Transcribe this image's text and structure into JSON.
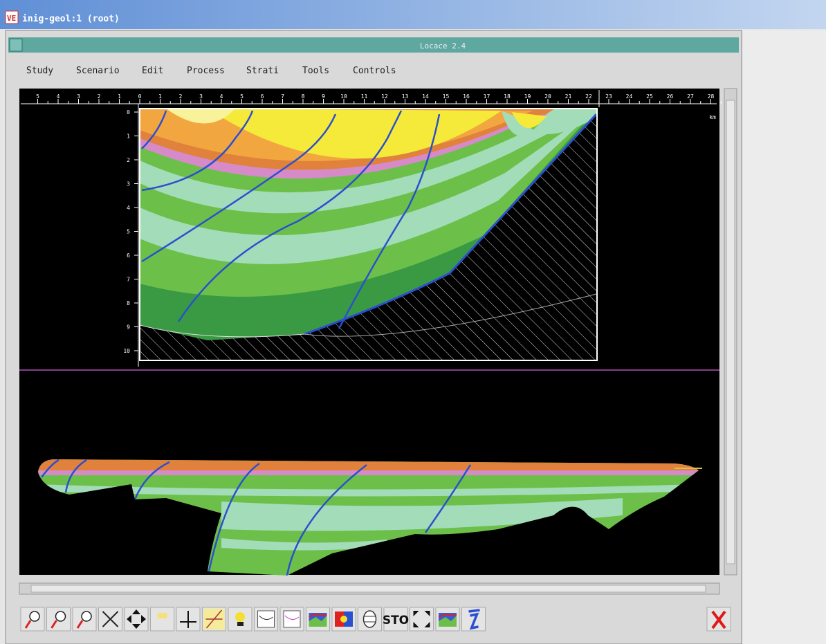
{
  "window": {
    "title": "inig-geol:1 (root)",
    "subtitle": "Locace 2.4"
  },
  "menu": [
    "Study",
    "Scenario",
    "Edit",
    "Process",
    "Strati",
    "Tools",
    "Controls"
  ],
  "ruler": {
    "left": [
      "5",
      "4",
      "3",
      "2",
      "1"
    ],
    "main": [
      "0",
      "1",
      "2",
      "3",
      "4",
      "5",
      "6",
      "7",
      "8",
      "9",
      "10",
      "11",
      "12",
      "13",
      "14",
      "15",
      "16",
      "17",
      "18",
      "19",
      "20",
      "21",
      "22"
    ],
    "right": [
      "23",
      "24",
      "25",
      "26",
      "27",
      "28"
    ],
    "unit": "km"
  },
  "depth_axis": [
    "0",
    "1",
    "2",
    "3",
    "4",
    "5",
    "6",
    "7",
    "8",
    "9",
    "10"
  ],
  "toolbar": {
    "sto": "STO"
  }
}
